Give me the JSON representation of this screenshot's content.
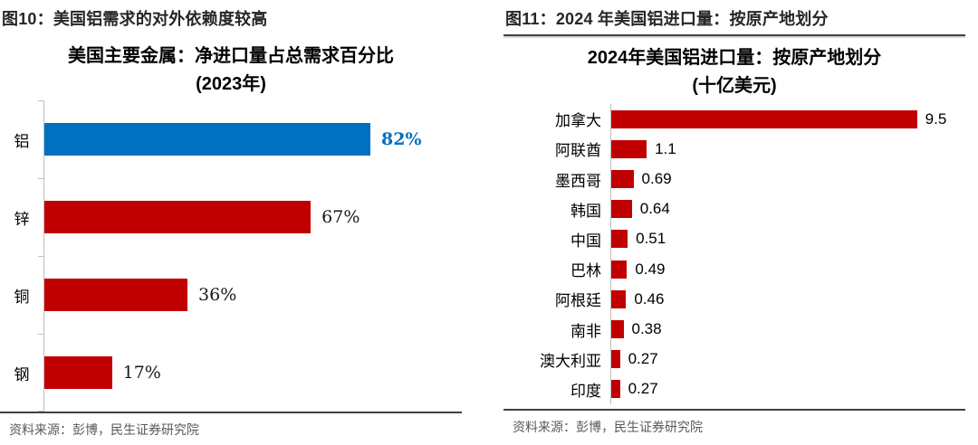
{
  "colors": {
    "bar_red": "#C00000",
    "bar_blue": "#0070C0",
    "axis_gray": "#BFBFBF",
    "header_text": "#262626",
    "rule_dark": "#404040",
    "source_text": "#595959"
  },
  "figures": [
    {
      "header": "图10：美国铝需求的对外依赖度较高",
      "source": "资料来源：彭博，民生证券研究院"
    },
    {
      "header": "图11：2024 年美国铝进口量：按原产地划分",
      "source": "资料来源：彭博，民生证券研究院"
    }
  ],
  "chart_data": [
    {
      "type": "bar",
      "orientation": "horizontal",
      "title": "美国主要金属：净进口量占总需求百分比",
      "subtitle": "(2023年)",
      "categories": [
        "铝",
        "锌",
        "铜",
        "钢"
      ],
      "values": [
        82,
        67,
        36,
        17
      ],
      "value_labels": [
        "82%",
        "67%",
        "36%",
        "17%"
      ],
      "unit": "%",
      "xlim": [
        0,
        100
      ],
      "display_max": 105,
      "grid": false,
      "legend": false,
      "bar_colors": [
        "#0070C0",
        "#C00000",
        "#C00000",
        "#C00000"
      ],
      "label_colors": [
        "#0070C0",
        "#1a1a1a",
        "#1a1a1a",
        "#1a1a1a"
      ],
      "label_weights": [
        "bold",
        "normal",
        "normal",
        "normal"
      ],
      "highlight_category": "铝"
    },
    {
      "type": "bar",
      "orientation": "horizontal",
      "title": "2024年美国铝进口量：按原产地划分",
      "subtitle": "(十亿美元)",
      "categories": [
        "加拿大",
        "阿联酋",
        "墨西哥",
        "韩国",
        "中国",
        "巴林",
        "阿根廷",
        "南非",
        "澳大利亚",
        "印度"
      ],
      "values": [
        9.5,
        1.1,
        0.69,
        0.64,
        0.51,
        0.49,
        0.46,
        0.38,
        0.27,
        0.27
      ],
      "value_labels": [
        "9.5",
        "1.1",
        "0.69",
        "0.64",
        "0.51",
        "0.49",
        "0.46",
        "0.38",
        "0.27",
        "0.27"
      ],
      "unit": "十亿美元",
      "xlim": [
        0,
        10
      ],
      "display_max": 11,
      "grid": false,
      "legend": false,
      "bar_colors": [
        "#C00000",
        "#C00000",
        "#C00000",
        "#C00000",
        "#C00000",
        "#C00000",
        "#C00000",
        "#C00000",
        "#C00000",
        "#C00000"
      ],
      "label_colors": [
        "#000000",
        "#000000",
        "#000000",
        "#000000",
        "#000000",
        "#000000",
        "#000000",
        "#000000",
        "#000000",
        "#000000"
      ],
      "label_weights": [
        "normal",
        "normal",
        "normal",
        "normal",
        "normal",
        "normal",
        "normal",
        "normal",
        "normal",
        "normal"
      ]
    }
  ]
}
